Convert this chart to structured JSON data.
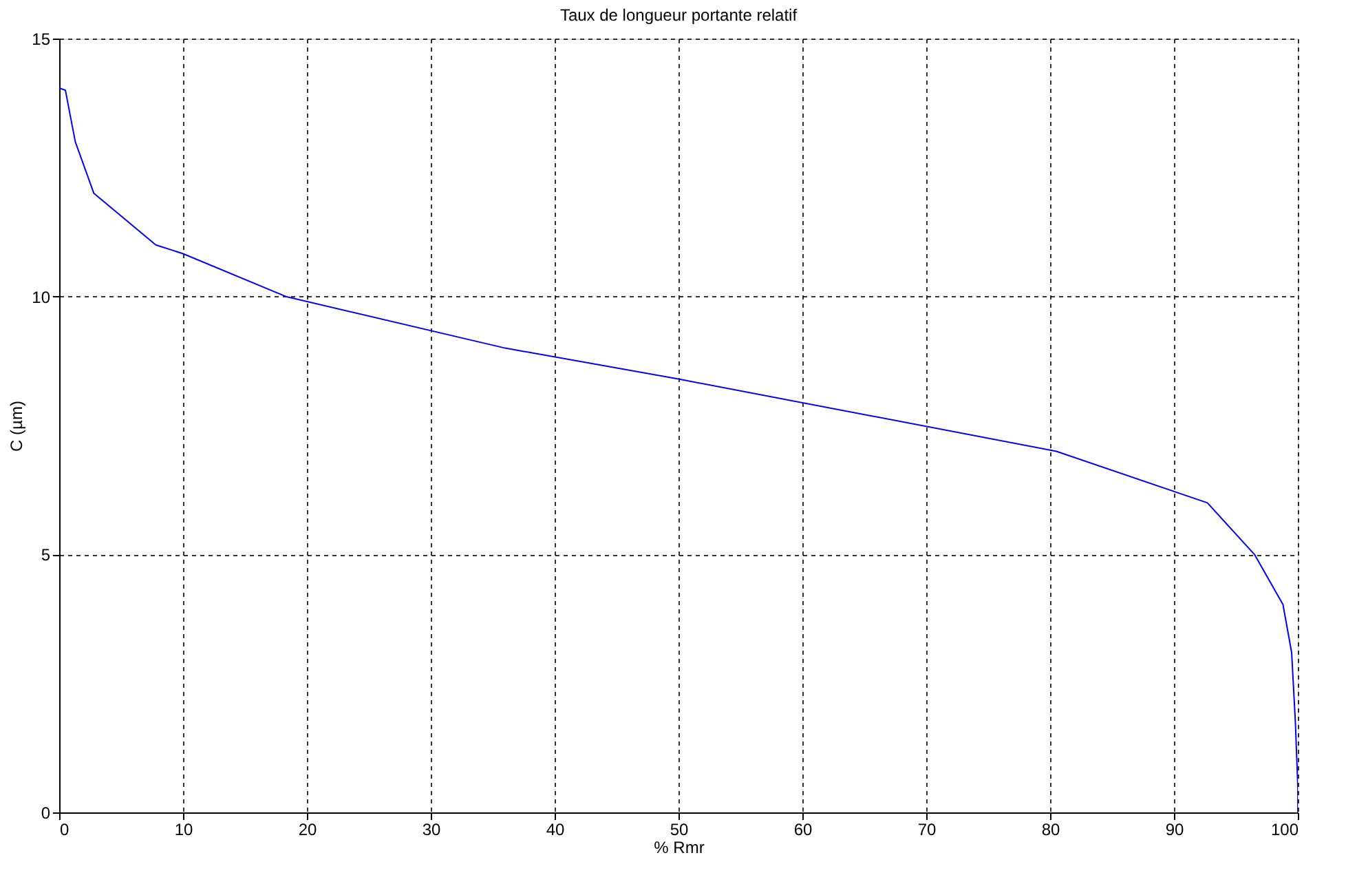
{
  "chart_data": {
    "type": "line",
    "title": "Taux de longueur portante relatif",
    "xlabel": "% Rmr",
    "ylabel": "C (µm)",
    "series": [
      {
        "color": "#0000ff",
        "x": [
          0,
          0.5,
          1.3,
          2.8,
          7.8,
          10,
          18.3,
          36,
          50,
          80.5,
          92.7,
          96.5,
          98.8,
          99.5,
          99.8,
          100,
          100
        ],
        "values": [
          14.04,
          14.0,
          13.0,
          12.0,
          11.0,
          10.83,
          10.0,
          9.0,
          8.4,
          7.0,
          6.0,
          5.0,
          4.03,
          3.1,
          1.76,
          0.5,
          0
        ]
      }
    ],
    "xlim": [
      0,
      100
    ],
    "ylim": [
      0,
      15
    ],
    "xticks": [
      0,
      10,
      20,
      30,
      40,
      50,
      60,
      70,
      80,
      90,
      100
    ],
    "yticks": [
      0,
      5,
      10,
      15
    ],
    "grid": true,
    "line_style": "solid",
    "marker": "none"
  }
}
